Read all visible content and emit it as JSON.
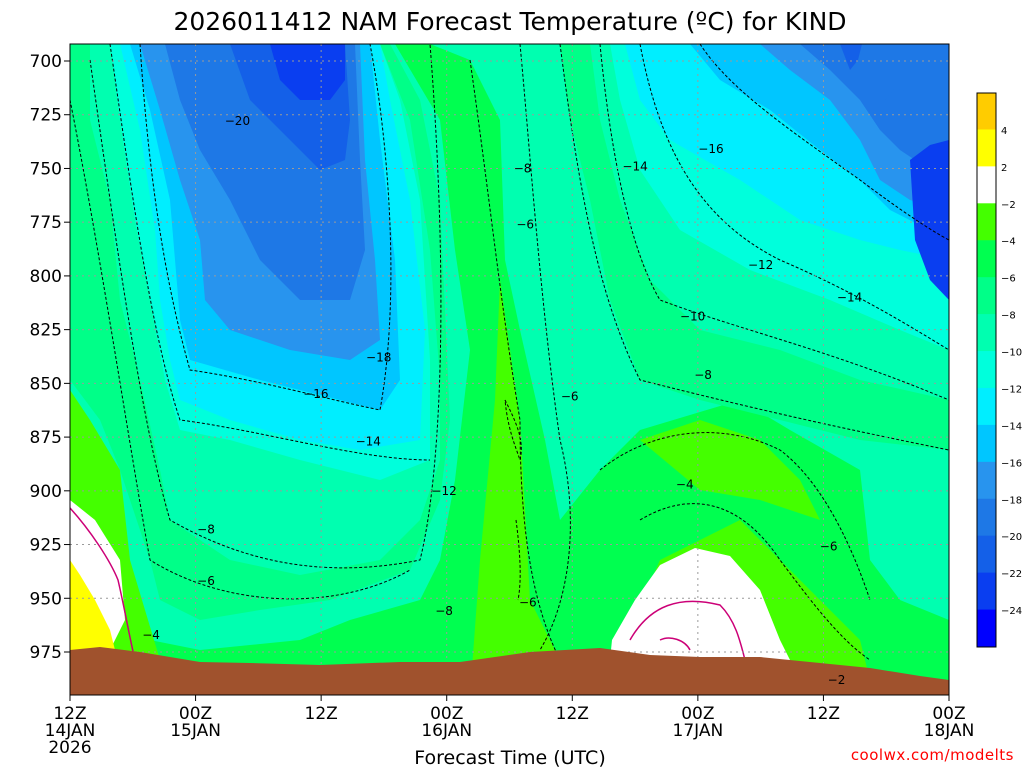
{
  "chart_data": {
    "type": "heatmap",
    "title": "2026011412 NAM Forecast Temperature (ºC) for KIND",
    "xlabel": "Forecast Time (UTC)",
    "ylabel": "",
    "x_ticks": [
      {
        "time": "2026-01-14T12:00Z",
        "lines": [
          "12Z",
          "14JAN",
          "2026"
        ]
      },
      {
        "time": "2026-01-15T00:00Z",
        "lines": [
          "00Z",
          "15JAN"
        ]
      },
      {
        "time": "2026-01-15T12:00Z",
        "lines": [
          "12Z"
        ]
      },
      {
        "time": "2026-01-16T00:00Z",
        "lines": [
          "00Z",
          "16JAN"
        ]
      },
      {
        "time": "2026-01-16T12:00Z",
        "lines": [
          "12Z"
        ]
      },
      {
        "time": "2026-01-17T00:00Z",
        "lines": [
          "00Z",
          "17JAN"
        ]
      },
      {
        "time": "2026-01-17T12:00Z",
        "lines": [
          "12Z"
        ]
      },
      {
        "time": "2026-01-18T00:00Z",
        "lines": [
          "00Z",
          "18JAN"
        ]
      }
    ],
    "y_ticks": [
      700,
      725,
      750,
      775,
      800,
      825,
      850,
      875,
      900,
      925,
      950,
      975
    ],
    "ylim_hpa": [
      695,
      1000
    ],
    "color_levels": [
      {
        "max": -24,
        "color": "#0000ff"
      },
      {
        "min": -24,
        "max": -22,
        "color": "#0a3ef0"
      },
      {
        "min": -22,
        "max": -20,
        "color": "#1460e8"
      },
      {
        "min": -20,
        "max": -18,
        "color": "#1e78e6"
      },
      {
        "min": -18,
        "max": -16,
        "color": "#2894ee"
      },
      {
        "min": -16,
        "max": -14,
        "color": "#00c6ff"
      },
      {
        "min": -14,
        "max": -12,
        "color": "#00eeff"
      },
      {
        "min": -12,
        "max": -10,
        "color": "#00ffdc"
      },
      {
        "min": -10,
        "max": -8,
        "color": "#00ffb0"
      },
      {
        "min": -8,
        "max": -6,
        "color": "#00ff88"
      },
      {
        "min": -6,
        "max": -4,
        "color": "#00ff50"
      },
      {
        "min": -4,
        "max": -2,
        "color": "#44ff00"
      },
      {
        "min": -2,
        "max": 2,
        "color": "#ffffff"
      },
      {
        "min": 2,
        "max": 4,
        "color": "#ffff00"
      },
      {
        "min": 4,
        "color": "#ffcc00"
      }
    ],
    "colorbar_labels": [
      "4",
      "2",
      "−2",
      "−4",
      "−6",
      "−8",
      "−10",
      "−12",
      "−14",
      "−16",
      "−18",
      "−20",
      "−22",
      "−24"
    ],
    "contour_labels": [
      {
        "text": "−20",
        "time": "2026-01-15T04:00Z",
        "hpa": 728
      },
      {
        "text": "−8",
        "time": "2026-01-16T07:15Z",
        "hpa": 750
      },
      {
        "text": "−14",
        "time": "2026-01-16T18:00Z",
        "hpa": 749
      },
      {
        "text": "−16",
        "time": "2026-01-17T01:15Z",
        "hpa": 741
      },
      {
        "text": "−6",
        "time": "2026-01-16T07:30Z",
        "hpa": 776
      },
      {
        "text": "−12",
        "time": "2026-01-17T06:00Z",
        "hpa": 795
      },
      {
        "text": "−14",
        "time": "2026-01-17T14:30Z",
        "hpa": 810
      },
      {
        "text": "−10",
        "time": "2026-01-16T23:30Z",
        "hpa": 819
      },
      {
        "text": "−18",
        "time": "2026-01-15T17:30Z",
        "hpa": 838
      },
      {
        "text": "−8",
        "time": "2026-01-17T00:30Z",
        "hpa": 846
      },
      {
        "text": "−16",
        "time": "2026-01-15T11:30Z",
        "hpa": 855
      },
      {
        "text": "−6",
        "time": "2026-01-16T11:45Z",
        "hpa": 856
      },
      {
        "text": "−14",
        "time": "2026-01-15T16:30Z",
        "hpa": 877
      },
      {
        "text": "−4",
        "time": "2026-01-16T22:45Z",
        "hpa": 897
      },
      {
        "text": "−12",
        "time": "2026-01-15T23:45Z",
        "hpa": 900
      },
      {
        "text": "−8",
        "time": "2026-01-15T01:00Z",
        "hpa": 918
      },
      {
        "text": "−6",
        "time": "2026-01-17T12:30Z",
        "hpa": 926
      },
      {
        "text": "−6",
        "time": "2026-01-15T01:00Z",
        "hpa": 942
      },
      {
        "text": "−6",
        "time": "2026-01-16T07:45Z",
        "hpa": 952
      },
      {
        "text": "−8",
        "time": "2026-01-15T23:45Z",
        "hpa": 956
      },
      {
        "text": "−4",
        "time": "2026-01-14T19:45Z",
        "hpa": 967
      },
      {
        "text": "−2",
        "time": "2026-01-17T13:15Z",
        "hpa": 988
      }
    ]
  },
  "credit": "coolwx.com/modelts",
  "colors": {
    "background": "#ffffff",
    "terrain": "#a0522d",
    "freezing_line": "#cc0077",
    "credit_text": "#ff0000"
  }
}
